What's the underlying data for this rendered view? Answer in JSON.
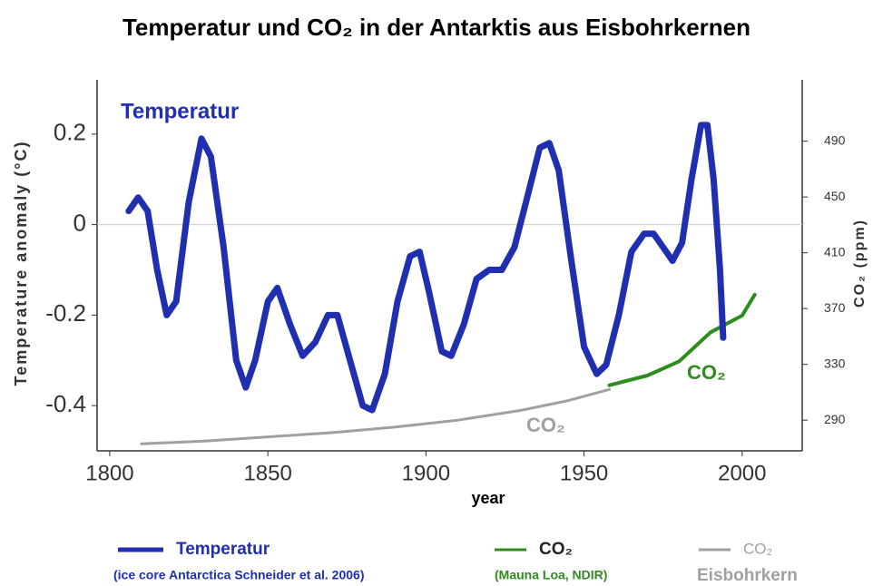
{
  "chart_data": {
    "type": "line",
    "title": "Temperatur und CO₂ in der Antarktis aus Eisbohrkernen",
    "xlabel": "year",
    "ylabel": "Temperature anomaly (°C)",
    "y2label": "CO₂ (ppm)",
    "xlim": [
      1796,
      2019
    ],
    "xticks": [
      1800,
      1850,
      1900,
      1950,
      2000
    ],
    "ylim": [
      -0.5,
      0.32
    ],
    "yticks": [
      0.2,
      0,
      -0.2,
      -0.4
    ],
    "y2lim": [
      268,
      534
    ],
    "y2ticks": [
      490,
      450,
      410,
      370,
      330,
      290
    ],
    "hlines": [
      0
    ],
    "series": [
      {
        "name": "Temperatur",
        "note": "(ice core Antarctica Schneider et al. 2006)",
        "color": "#1f2fb0",
        "axis": "y",
        "x": [
          1806,
          1809,
          1812,
          1815,
          1818,
          1821,
          1825,
          1829,
          1832,
          1836,
          1840,
          1843,
          1846,
          1850,
          1853,
          1857,
          1861,
          1865,
          1869,
          1872,
          1876,
          1880,
          1883,
          1887,
          1891,
          1895,
          1898,
          1901,
          1905,
          1908,
          1912,
          1916,
          1920,
          1924,
          1928,
          1932,
          1936,
          1939,
          1942,
          1946,
          1950,
          1954,
          1957,
          1961,
          1965,
          1969,
          1972,
          1975,
          1978,
          1981,
          1984,
          1987,
          1989,
          1991,
          1993,
          1994
        ],
        "values": [
          0.03,
          0.06,
          0.03,
          -0.1,
          -0.2,
          -0.17,
          0.05,
          0.19,
          0.15,
          -0.05,
          -0.3,
          -0.36,
          -0.3,
          -0.17,
          -0.14,
          -0.22,
          -0.29,
          -0.26,
          -0.2,
          -0.2,
          -0.3,
          -0.4,
          -0.41,
          -0.33,
          -0.17,
          -0.07,
          -0.06,
          -0.15,
          -0.28,
          -0.29,
          -0.22,
          -0.12,
          -0.1,
          -0.1,
          -0.05,
          0.06,
          0.17,
          0.18,
          0.12,
          -0.08,
          -0.27,
          -0.33,
          -0.31,
          -0.2,
          -0.06,
          -0.02,
          -0.02,
          -0.05,
          -0.08,
          -0.04,
          0.1,
          0.22,
          0.22,
          0.1,
          -0.1,
          -0.25
        ]
      },
      {
        "name": "CO₂",
        "note": "(Mauna Loa, NDIR)",
        "color": "#2e8b1e",
        "axis": "y2",
        "x": [
          1958,
          1970,
          1980,
          1990,
          2000,
          2004
        ],
        "values": [
          315,
          322,
          332,
          353,
          365,
          380
        ]
      },
      {
        "name": "CO₂",
        "note": "Eisbohrkern",
        "color": "#a0a0a0",
        "axis": "y2",
        "x": [
          1810,
          1830,
          1850,
          1870,
          1890,
          1910,
          1930,
          1945,
          1958
        ],
        "values": [
          273,
          275,
          278,
          281,
          285,
          290,
          297,
          304,
          312
        ]
      }
    ],
    "annotations": [
      {
        "text": "Temperatur",
        "color": "#1f2fb0"
      },
      {
        "text": "CO₂",
        "color": "#2e8b1e"
      },
      {
        "text": "CO₂",
        "color": "#a0a0a0"
      }
    ]
  }
}
